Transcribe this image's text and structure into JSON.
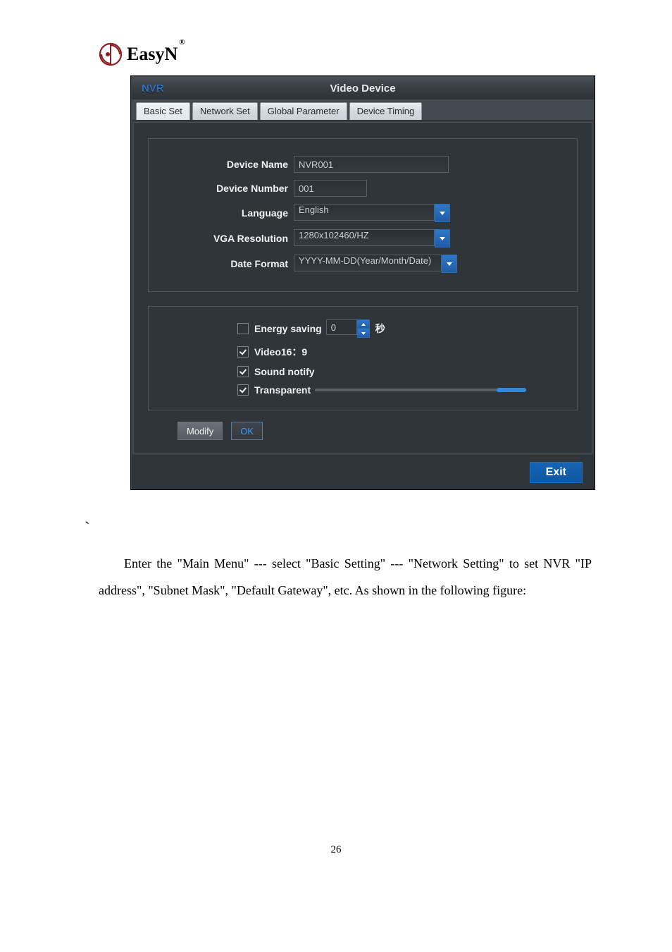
{
  "logo": {
    "text": "EasyN",
    "reg": "®"
  },
  "header": {
    "left": "NVR",
    "center": "Video Device"
  },
  "tabs": [
    "Basic Set",
    "Network Set",
    "Global Parameter",
    "Device Timing"
  ],
  "form": {
    "device_name": {
      "label": "Device Name",
      "value": "NVR001"
    },
    "device_number": {
      "label": "Device Number",
      "value": "001"
    },
    "language": {
      "label": "Language",
      "value": "English"
    },
    "vga": {
      "label": "VGA Resolution",
      "value": "1280x102460/HZ"
    },
    "date_format": {
      "label": "Date Format",
      "value": "YYYY-MM-DD(Year/Month/Date)"
    }
  },
  "options": {
    "energy": {
      "label": "Energy saving",
      "value": "0",
      "unit": "秒",
      "checked": false
    },
    "video": {
      "label": "Video16：9",
      "checked": true
    },
    "sound": {
      "label": "Sound notify",
      "checked": true
    },
    "transparent": {
      "label": "Transparent",
      "checked": true,
      "slider_percent": 14
    }
  },
  "buttons": {
    "modify": "Modify",
    "ok": "OK",
    "exit": "Exit"
  },
  "body_text": "Enter the \"Main Menu\" --- select \"Basic Setting\" --- \"Network Setting\" to set NVR \"IP address\", \"Subnet Mask\", \"Default Gateway\", etc. As shown in the following figure:",
  "backtick": "`",
  "page_number": "26",
  "colors": {
    "accent_blue": "#1565b5",
    "panel_bg": "#2f3539",
    "slider_fill": "#2f8adf"
  }
}
